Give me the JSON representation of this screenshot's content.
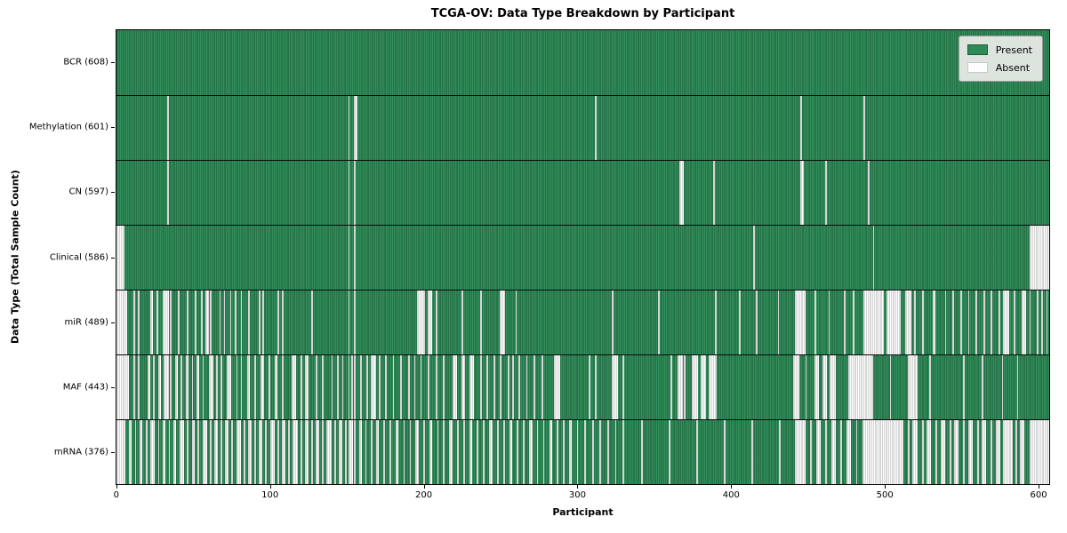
{
  "title": "TCGA-OV: Data Type Breakdown by Participant",
  "xlabel": "Participant",
  "ylabel": "Data Type (Total Sample Count)",
  "legend": {
    "present_label": "Present",
    "absent_label": "Absent"
  },
  "colors": {
    "present": "#2e8b57",
    "present_edge": "#1e5c3a",
    "absent": "#fcfcfc",
    "absent_edge": "#9a9e9a",
    "legend_bg": "#ebede9",
    "spine": "#000000"
  },
  "chart_data": {
    "type": "heatmap",
    "title": "TCGA-OV: Data Type Breakdown by Participant",
    "xlabel": "Participant",
    "ylabel": "Data Type (Total Sample Count)",
    "x_ticks": [
      0,
      100,
      200,
      300,
      400,
      500,
      600
    ],
    "n_participants": 608,
    "legend": [
      {
        "label": "Present",
        "color": "#2e8b57"
      },
      {
        "label": "Absent",
        "color": "#ffffff"
      }
    ],
    "rows": [
      {
        "label": "BCR (608)",
        "name": "BCR",
        "present_count": 608,
        "absent_ranges": []
      },
      {
        "label": "Methylation (601)",
        "name": "Methylation",
        "present_count": 601,
        "absent_ranges": [
          [
            33,
            33
          ],
          [
            151,
            151
          ],
          [
            155,
            156
          ],
          [
            312,
            312
          ],
          [
            446,
            446
          ],
          [
            487,
            487
          ]
        ]
      },
      {
        "label": "CN (597)",
        "name": "CN",
        "present_count": 597,
        "absent_ranges": [
          [
            33,
            33
          ],
          [
            151,
            151
          ],
          [
            155,
            155
          ],
          [
            367,
            369
          ],
          [
            389,
            389
          ],
          [
            446,
            447
          ],
          [
            462,
            462
          ],
          [
            490,
            490
          ]
        ]
      },
      {
        "label": "Clinical (586)",
        "name": "Clinical",
        "present_count": 586,
        "absent_ranges": [
          [
            0,
            4
          ],
          [
            151,
            151
          ],
          [
            155,
            155
          ],
          [
            415,
            415
          ],
          [
            493,
            493
          ],
          [
            595,
            607
          ]
        ]
      },
      {
        "label": "miR (489)",
        "name": "miR",
        "present_count": 489,
        "absent_ranges": [
          [
            0,
            6
          ],
          [
            11,
            11
          ],
          [
            14,
            14
          ],
          [
            22,
            23
          ],
          [
            26,
            26
          ],
          [
            30,
            33
          ],
          [
            35,
            35
          ],
          [
            40,
            40
          ],
          [
            46,
            46
          ],
          [
            51,
            51
          ],
          [
            55,
            55
          ],
          [
            58,
            59
          ],
          [
            61,
            61
          ],
          [
            67,
            67
          ],
          [
            70,
            70
          ],
          [
            74,
            74
          ],
          [
            77,
            77
          ],
          [
            81,
            81
          ],
          [
            86,
            86
          ],
          [
            93,
            93
          ],
          [
            95,
            95
          ],
          [
            105,
            105
          ],
          [
            108,
            108
          ],
          [
            127,
            127
          ],
          [
            151,
            151
          ],
          [
            155,
            155
          ],
          [
            196,
            200
          ],
          [
            203,
            205
          ],
          [
            208,
            208
          ],
          [
            225,
            225
          ],
          [
            237,
            237
          ],
          [
            250,
            252
          ],
          [
            260,
            260
          ],
          [
            323,
            323
          ],
          [
            353,
            353
          ],
          [
            390,
            390
          ],
          [
            406,
            406
          ],
          [
            417,
            417
          ],
          [
            431,
            431
          ],
          [
            442,
            448
          ],
          [
            455,
            455
          ],
          [
            464,
            464
          ],
          [
            474,
            474
          ],
          [
            480,
            480
          ],
          [
            487,
            499
          ],
          [
            502,
            510
          ],
          [
            514,
            517
          ],
          [
            520,
            520
          ],
          [
            525,
            525
          ],
          [
            532,
            533
          ],
          [
            540,
            540
          ],
          [
            545,
            545
          ],
          [
            550,
            550
          ],
          [
            555,
            555
          ],
          [
            560,
            560
          ],
          [
            565,
            565
          ],
          [
            570,
            570
          ],
          [
            575,
            575
          ],
          [
            578,
            581
          ],
          [
            585,
            585
          ],
          [
            590,
            592
          ],
          [
            595,
            595
          ],
          [
            600,
            600
          ],
          [
            603,
            603
          ],
          [
            606,
            606
          ]
        ]
      },
      {
        "label": "MAF (443)",
        "name": "MAF",
        "present_count": 443,
        "absent_ranges": [
          [
            0,
            7
          ],
          [
            11,
            11
          ],
          [
            14,
            14
          ],
          [
            20,
            21
          ],
          [
            24,
            24
          ],
          [
            27,
            28
          ],
          [
            31,
            33
          ],
          [
            35,
            35
          ],
          [
            38,
            39
          ],
          [
            42,
            42
          ],
          [
            45,
            46
          ],
          [
            49,
            49
          ],
          [
            52,
            53
          ],
          [
            56,
            56
          ],
          [
            60,
            62
          ],
          [
            65,
            65
          ],
          [
            68,
            68
          ],
          [
            72,
            74
          ],
          [
            78,
            78
          ],
          [
            81,
            81
          ],
          [
            85,
            86
          ],
          [
            90,
            90
          ],
          [
            94,
            95
          ],
          [
            99,
            99
          ],
          [
            103,
            104
          ],
          [
            108,
            108
          ],
          [
            114,
            116
          ],
          [
            120,
            120
          ],
          [
            123,
            124
          ],
          [
            130,
            130
          ],
          [
            134,
            134
          ],
          [
            140,
            140
          ],
          [
            144,
            144
          ],
          [
            147,
            147
          ],
          [
            151,
            151
          ],
          [
            153,
            153
          ],
          [
            155,
            155
          ],
          [
            159,
            159
          ],
          [
            163,
            163
          ],
          [
            166,
            168
          ],
          [
            171,
            171
          ],
          [
            175,
            175
          ],
          [
            180,
            180
          ],
          [
            185,
            185
          ],
          [
            190,
            190
          ],
          [
            194,
            194
          ],
          [
            198,
            198
          ],
          [
            203,
            203
          ],
          [
            208,
            208
          ],
          [
            213,
            213
          ],
          [
            219,
            221
          ],
          [
            225,
            226
          ],
          [
            230,
            232
          ],
          [
            237,
            237
          ],
          [
            241,
            241
          ],
          [
            246,
            246
          ],
          [
            250,
            250
          ],
          [
            255,
            255
          ],
          [
            258,
            258
          ],
          [
            262,
            262
          ],
          [
            267,
            267
          ],
          [
            272,
            272
          ],
          [
            277,
            277
          ],
          [
            285,
            288
          ],
          [
            308,
            308
          ],
          [
            312,
            312
          ],
          [
            323,
            326
          ],
          [
            330,
            330
          ],
          [
            361,
            361
          ],
          [
            366,
            368
          ],
          [
            370,
            370
          ],
          [
            375,
            378
          ],
          [
            381,
            383
          ],
          [
            386,
            390
          ],
          [
            441,
            444
          ],
          [
            449,
            449
          ],
          [
            455,
            457
          ],
          [
            460,
            462
          ],
          [
            465,
            468
          ],
          [
            477,
            492
          ],
          [
            504,
            504
          ],
          [
            516,
            521
          ],
          [
            530,
            530
          ],
          [
            552,
            552
          ],
          [
            564,
            564
          ],
          [
            577,
            577
          ],
          [
            587,
            587
          ]
        ]
      },
      {
        "label": "mRNA (376)",
        "name": "mRNA",
        "present_count": 376,
        "absent_ranges": [
          [
            0,
            5
          ],
          [
            8,
            9
          ],
          [
            12,
            12
          ],
          [
            15,
            16
          ],
          [
            19,
            19
          ],
          [
            22,
            24
          ],
          [
            27,
            27
          ],
          [
            30,
            31
          ],
          [
            34,
            34
          ],
          [
            37,
            38
          ],
          [
            41,
            43
          ],
          [
            46,
            46
          ],
          [
            49,
            50
          ],
          [
            53,
            53
          ],
          [
            56,
            58
          ],
          [
            61,
            61
          ],
          [
            64,
            65
          ],
          [
            68,
            68
          ],
          [
            71,
            72
          ],
          [
            75,
            75
          ],
          [
            78,
            80
          ],
          [
            83,
            83
          ],
          [
            86,
            87
          ],
          [
            90,
            90
          ],
          [
            93,
            94
          ],
          [
            97,
            97
          ],
          [
            100,
            102
          ],
          [
            105,
            105
          ],
          [
            108,
            109
          ],
          [
            112,
            112
          ],
          [
            115,
            117
          ],
          [
            120,
            120
          ],
          [
            123,
            124
          ],
          [
            127,
            127
          ],
          [
            130,
            131
          ],
          [
            134,
            134
          ],
          [
            137,
            139
          ],
          [
            142,
            142
          ],
          [
            145,
            146
          ],
          [
            149,
            149
          ],
          [
            151,
            153
          ],
          [
            155,
            155
          ],
          [
            158,
            159
          ],
          [
            162,
            162
          ],
          [
            166,
            166
          ],
          [
            169,
            170
          ],
          [
            174,
            174
          ],
          [
            178,
            178
          ],
          [
            182,
            183
          ],
          [
            187,
            187
          ],
          [
            191,
            191
          ],
          [
            195,
            196
          ],
          [
            200,
            200
          ],
          [
            204,
            205
          ],
          [
            209,
            209
          ],
          [
            213,
            213
          ],
          [
            217,
            218
          ],
          [
            222,
            222
          ],
          [
            226,
            226
          ],
          [
            230,
            231
          ],
          [
            235,
            235
          ],
          [
            239,
            239
          ],
          [
            243,
            244
          ],
          [
            248,
            248
          ],
          [
            252,
            252
          ],
          [
            256,
            257
          ],
          [
            261,
            261
          ],
          [
            265,
            265
          ],
          [
            269,
            270
          ],
          [
            274,
            274
          ],
          [
            278,
            278
          ],
          [
            282,
            283
          ],
          [
            287,
            287
          ],
          [
            291,
            291
          ],
          [
            295,
            296
          ],
          [
            300,
            300
          ],
          [
            305,
            305
          ],
          [
            310,
            310
          ],
          [
            315,
            315
          ],
          [
            320,
            320
          ],
          [
            325,
            325
          ],
          [
            330,
            330
          ],
          [
            342,
            342
          ],
          [
            360,
            360
          ],
          [
            378,
            378
          ],
          [
            396,
            396
          ],
          [
            414,
            414
          ],
          [
            432,
            432
          ],
          [
            442,
            448
          ],
          [
            452,
            452
          ],
          [
            456,
            458
          ],
          [
            462,
            462
          ],
          [
            466,
            468
          ],
          [
            472,
            472
          ],
          [
            476,
            478
          ],
          [
            482,
            482
          ],
          [
            486,
            512
          ],
          [
            516,
            516
          ],
          [
            519,
            521
          ],
          [
            525,
            525
          ],
          [
            528,
            530
          ],
          [
            534,
            534
          ],
          [
            537,
            539
          ],
          [
            543,
            543
          ],
          [
            546,
            548
          ],
          [
            552,
            552
          ],
          [
            555,
            557
          ],
          [
            561,
            561
          ],
          [
            564,
            566
          ],
          [
            570,
            570
          ],
          [
            573,
            575
          ],
          [
            578,
            583
          ],
          [
            586,
            586
          ],
          [
            589,
            591
          ],
          [
            595,
            607
          ]
        ]
      }
    ]
  }
}
